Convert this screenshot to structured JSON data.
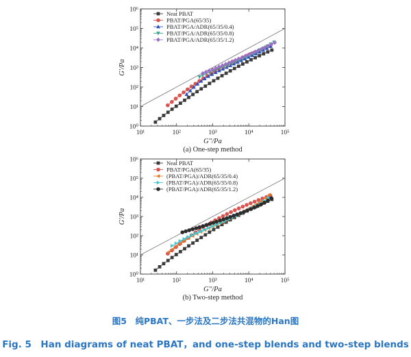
{
  "chart_data": [
    {
      "type": "scatter",
      "scale": "log-log",
      "xlabel": "G''/Pa",
      "ylabel": "G'/Pa",
      "subtitle": "(a) One-step method",
      "xlim": [
        10,
        100000
      ],
      "ylim": [
        1,
        1000000
      ],
      "x_tick_labels": [
        "10¹",
        "10²",
        "10³",
        "10⁴",
        "10⁵"
      ],
      "y_tick_labels": [
        "10⁰",
        "10¹",
        "10²",
        "10³",
        "10⁴",
        "10⁵",
        "10⁶"
      ],
      "reference_line": "G' = G''",
      "series": [
        {
          "name": "Neat PBAT",
          "marker": "square",
          "color": "#3a3a3a",
          "x": [
            26,
            34,
            44,
            58,
            75,
            98,
            128,
            167,
            217,
            283,
            369,
            481,
            627,
            817,
            1065,
            1388,
            1809,
            2358,
            3073,
            4005,
            5220,
            6803,
            8866,
            11554,
            15058,
            19624,
            25575,
            33331,
            43438
          ],
          "y": [
            1.6,
            2.4,
            3.5,
            5.1,
            7.3,
            10.4,
            14.8,
            21,
            29.5,
            41.5,
            58,
            80.6,
            111,
            153,
            209,
            283,
            381,
            508,
            674,
            888,
            1161,
            1507,
            1943,
            2490,
            3170,
            4008,
            5036,
            6287,
            7800
          ]
        },
        {
          "name": "PBAT/PGA(65/35)",
          "marker": "circle",
          "color": "#d9534f",
          "x": [
            57,
            74,
            95,
            122,
            157,
            202,
            259,
            333,
            428,
            550,
            707,
            909,
            1169,
            1503,
            1932,
            2484,
            3194,
            4105,
            5276,
            6784,
            8721,
            11211,
            14412,
            18529,
            23820,
            30622,
            39368
          ],
          "y": [
            11.6,
            17.3,
            25.5,
            37.1,
            53.5,
            76.2,
            107,
            148,
            203,
            275,
            368,
            487,
            638,
            827,
            1062,
            1352,
            1707,
            2138,
            2659,
            3285,
            4033,
            4923,
            5977,
            7218,
            8676,
            10381,
            12369
          ]
        },
        {
          "name": "PBAT/PGA/ADR(65/35/0.4)",
          "marker": "triangle-up",
          "color": "#2b50b8",
          "x": [
            190,
            240,
            300,
            380,
            480,
            600,
            760,
            960,
            1210,
            1530,
            1930,
            2440,
            3080,
            3890,
            4910,
            6200,
            7830,
            9890,
            12490,
            15770,
            19910,
            25140,
            31740,
            40080
          ],
          "y": [
            42,
            65,
            98,
            142,
            200,
            270,
            352,
            446,
            556,
            685,
            840,
            1030,
            1260,
            1540,
            1880,
            2290,
            2790,
            3400,
            4150,
            5070,
            6220,
            7680,
            9560,
            12100
          ]
        },
        {
          "name": "PBAT/PGA/ADR(65/35/0.8)",
          "marker": "triangle-down",
          "color": "#3aa88e",
          "x": [
            430,
            530,
            660,
            820,
            1020,
            1260,
            1570,
            1950,
            2420,
            3000,
            3730,
            4630,
            5750,
            7140,
            8870,
            11010,
            13670,
            16980,
            21090,
            26190,
            32520,
            40380,
            50150
          ],
          "y": [
            330,
            400,
            480,
            570,
            680,
            800,
            950,
            1120,
            1320,
            1560,
            1840,
            2180,
            2590,
            3090,
            3700,
            4450,
            5390,
            6580,
            8090,
            10000,
            12500,
            15700,
            19900
          ]
        },
        {
          "name": "PBAT/PGA/ADR(65/35/1.2)",
          "marker": "diamond",
          "color": "#9a6fc4",
          "x": [
            530,
            650,
            800,
            990,
            1220,
            1500,
            1850,
            2280,
            2810,
            3460,
            4270,
            5260,
            6480,
            7990,
            9840,
            12130,
            14950,
            18420,
            22700,
            27970,
            34470,
            42480,
            52350
          ],
          "y": [
            500,
            580,
            680,
            790,
            930,
            1090,
            1270,
            1490,
            1740,
            2040,
            2390,
            2800,
            3280,
            3850,
            4530,
            5340,
            6300,
            7460,
            8870,
            10600,
            12700,
            15400,
            18800
          ]
        }
      ]
    },
    {
      "type": "scatter",
      "scale": "log-log",
      "xlabel": "G''/Pa",
      "ylabel": "G'/Pa",
      "subtitle": "(b) Two-step method",
      "xlim": [
        10,
        100000
      ],
      "ylim": [
        1,
        1000000
      ],
      "x_tick_labels": [
        "10¹",
        "10²",
        "10³",
        "10⁴",
        "10⁵"
      ],
      "y_tick_labels": [
        "10⁰",
        "10¹",
        "10²",
        "10³",
        "10⁴",
        "10⁵",
        "10⁶"
      ],
      "reference_line": "G' = G''",
      "series": [
        {
          "name": "Neat PBAT",
          "marker": "square",
          "color": "#3a3a3a",
          "x": [
            26,
            34,
            44,
            58,
            75,
            98,
            128,
            167,
            217,
            283,
            369,
            481,
            627,
            817,
            1065,
            1388,
            1809,
            2358,
            3073,
            4005,
            5220,
            6803,
            8866,
            11554,
            15058,
            19624,
            25575,
            33331,
            43438
          ],
          "y": [
            1.6,
            2.4,
            3.5,
            5.1,
            7.3,
            10.4,
            14.8,
            21,
            29.5,
            41.5,
            58,
            80.6,
            111,
            153,
            209,
            283,
            381,
            508,
            674,
            888,
            1161,
            1507,
            1943,
            2490,
            3170,
            4008,
            5036,
            6287,
            7800
          ]
        },
        {
          "name": "PBAT/PGA(65/35)",
          "marker": "circle",
          "color": "#d9534f",
          "x": [
            57,
            74,
            95,
            122,
            157,
            202,
            259,
            333,
            428,
            550,
            707,
            909,
            1169,
            1503,
            1932,
            2484,
            3194,
            4105,
            5276,
            6784,
            8721,
            11211,
            14412,
            18529,
            23820,
            30622,
            39368
          ],
          "y": [
            11.6,
            17.3,
            25.5,
            37.1,
            53.5,
            76.2,
            107,
            148,
            203,
            275,
            368,
            487,
            638,
            827,
            1062,
            1352,
            1707,
            2138,
            2659,
            3285,
            4033,
            4923,
            5977,
            7218,
            8676,
            10381,
            12369
          ]
        },
        {
          "name": "(PBAT/PGA)/ADR(65/35/0.4)",
          "marker": "triangle-left",
          "color": "#e07b2e",
          "x": [
            60,
            78,
            100,
            130,
            168,
            217,
            280,
            362,
            468,
            605,
            782,
            1011,
            1307,
            1689,
            2184,
            2823,
            3649,
            4717,
            6098,
            7883,
            10190,
            13172,
            17027,
            22011,
            28453,
            36780
          ],
          "y": [
            14,
            20,
            29,
            41,
            56,
            75,
            98,
            126,
            160,
            200,
            250,
            310,
            385,
            480,
            600,
            760,
            960,
            1230,
            1580,
            2040,
            2660,
            3480,
            4620,
            6300,
            9100,
            13800
          ]
        },
        {
          "name": "(PBAT/PGA)/ADR(65/35/0.8)",
          "marker": "triangle-right",
          "color": "#3ec9d6",
          "x": [
            75,
            97,
            125,
            162,
            209,
            270,
            349,
            451,
            583,
            753,
            973,
            1257,
            1624,
            2099,
            2712,
            3504,
            4528,
            5851,
            7560,
            9769,
            12623,
            16311,
            21077,
            27235,
            35192
          ],
          "y": [
            30,
            40,
            53,
            68,
            86,
            108,
            134,
            165,
            203,
            250,
            308,
            380,
            468,
            578,
            716,
            889,
            1108,
            1385,
            1740,
            2200,
            2800,
            3600,
            4700,
            6400,
            9300
          ]
        },
        {
          "name": "(PBAT/PGA)/ADR(65/35/1.2)",
          "marker": "circle",
          "color": "#2b2b2b",
          "x": [
            145,
            180,
            224,
            279,
            347,
            431,
            536,
            667,
            829,
            1031,
            1282,
            1594,
            1982,
            2465,
            3065,
            3812,
            4740,
            5895,
            7331,
            9117,
            11337,
            14099,
            17533,
            21804,
            27115,
            33720,
            41933
          ],
          "y": [
            150,
            170,
            192,
            217,
            246,
            279,
            317,
            361,
            412,
            471,
            540,
            620,
            714,
            824,
            953,
            1106,
            1287,
            1502,
            1760,
            2070,
            2450,
            2920,
            3510,
            4270,
            5300,
            6800,
            9100
          ]
        }
      ]
    }
  ],
  "caption": {
    "cn": "图5　纯PBAT、一步法及二步法共混物的Han图",
    "en": "Fig. 5　Han diagrams of neat PBAT，and one-step blends and two-step blends"
  }
}
